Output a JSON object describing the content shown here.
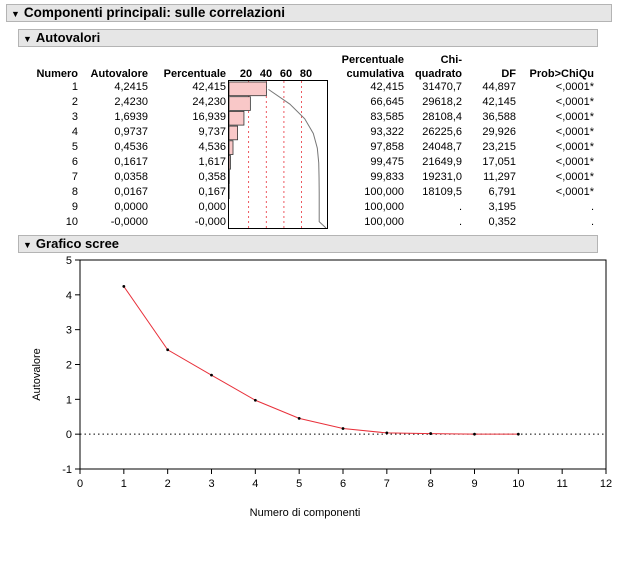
{
  "report_title": "Componenti principali: sulle correlazioni",
  "eigen_section": {
    "title": "Autovalori",
    "headers": {
      "numero": "Numero",
      "autovalore": "Autovalore",
      "percentuale": "Percentuale",
      "bar_ticks": [
        "20",
        "40",
        "60",
        "80"
      ],
      "perc_cum_1": "Percentuale",
      "perc_cum_2": "cumulativa",
      "chi_1": "Chi-",
      "chi_2": "quadrato",
      "df": "DF",
      "prob": "Prob>ChiQu"
    },
    "rows": [
      {
        "numero": "1",
        "autovalore": "4,2415",
        "percentuale": "42,415",
        "cumulativa": "42,415",
        "chi": "31470,7",
        "df": "44,897",
        "prob": "<,0001*",
        "pct_value": 42.415
      },
      {
        "numero": "2",
        "autovalore": "2,4230",
        "percentuale": "24,230",
        "cumulativa": "66,645",
        "chi": "29618,2",
        "df": "42,145",
        "prob": "<,0001*",
        "pct_value": 24.23
      },
      {
        "numero": "3",
        "autovalore": "1,6939",
        "percentuale": "16,939",
        "cumulativa": "83,585",
        "chi": "28108,4",
        "df": "36,588",
        "prob": "<,0001*",
        "pct_value": 16.939
      },
      {
        "numero": "4",
        "autovalore": "0,9737",
        "percentuale": "9,737",
        "cumulativa": "93,322",
        "chi": "26225,6",
        "df": "29,926",
        "prob": "<,0001*",
        "pct_value": 9.737
      },
      {
        "numero": "5",
        "autovalore": "0,4536",
        "percentuale": "4,536",
        "cumulativa": "97,858",
        "chi": "24048,7",
        "df": "23,215",
        "prob": "<,0001*",
        "pct_value": 4.536
      },
      {
        "numero": "6",
        "autovalore": "0,1617",
        "percentuale": "1,617",
        "cumulativa": "99,475",
        "chi": "21649,9",
        "df": "17,051",
        "prob": "<,0001*",
        "pct_value": 1.617
      },
      {
        "numero": "7",
        "autovalore": "0,0358",
        "percentuale": "0,358",
        "cumulativa": "99,833",
        "chi": "19231,0",
        "df": "11,297",
        "prob": "<,0001*",
        "pct_value": 0.358
      },
      {
        "numero": "8",
        "autovalore": "0,0167",
        "percentuale": "0,167",
        "cumulativa": "100,000",
        "chi": "18109,5",
        "df": "6,791",
        "prob": "<,0001*",
        "pct_value": 0.167
      },
      {
        "numero": "9",
        "autovalore": "0,0000",
        "percentuale": "0,000",
        "cumulativa": "100,000",
        "chi": ".",
        "df": "3,195",
        "prob": ".",
        "pct_value": 0.0
      },
      {
        "numero": "10",
        "autovalore": "-0,0000",
        "percentuale": "-0,000",
        "cumulativa": "100,000",
        "chi": ".",
        "df": "0,352",
        "prob": ".",
        "pct_value": 0.0
      }
    ]
  },
  "scree_section": {
    "title": "Grafico scree"
  },
  "chart_data": {
    "type": "line",
    "x": [
      1,
      2,
      3,
      4,
      5,
      6,
      7,
      8,
      9,
      10
    ],
    "values": [
      4.2415,
      2.423,
      1.6939,
      0.9737,
      0.4536,
      0.1617,
      0.0358,
      0.0167,
      0.0,
      0.0
    ],
    "xlabel": "Numero di componenti",
    "ylabel": "Autovalore",
    "xlim": [
      0,
      12
    ],
    "ylim": [
      -1,
      5
    ],
    "x_ticks": [
      "0",
      "1",
      "2",
      "3",
      "4",
      "5",
      "6",
      "7",
      "8",
      "9",
      "10",
      "11",
      "12"
    ],
    "y_ticks": [
      "-1",
      "0",
      "1",
      "2",
      "3",
      "4",
      "5"
    ],
    "reference_line_y": 0,
    "line_color": "#e8303a",
    "point_color": "#000000"
  }
}
